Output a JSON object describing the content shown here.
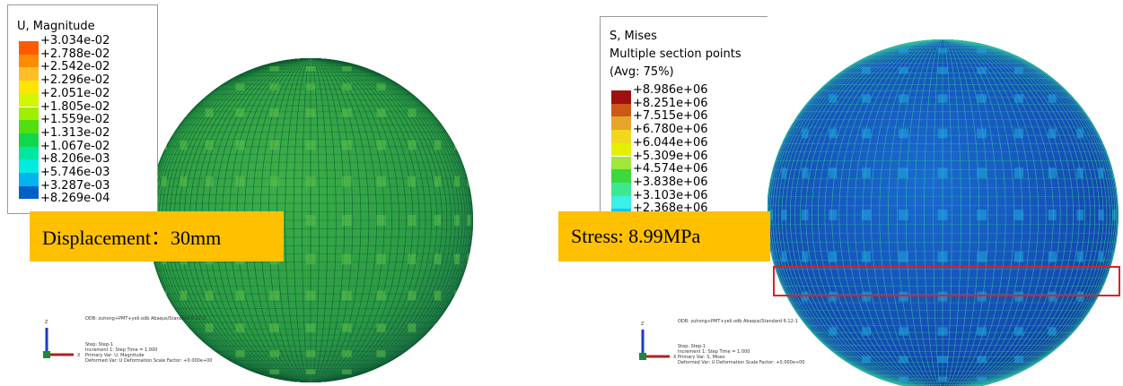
{
  "left": {
    "legend_title": "U, Magnitude",
    "legend": [
      {
        "label": "+3.034e-02",
        "color": "#ff5a00"
      },
      {
        "label": "+2.788e-02",
        "color": "#ff8c00"
      },
      {
        "label": "+2.542e-02",
        "color": "#ffbe28"
      },
      {
        "label": "+2.296e-02",
        "color": "#ffe400"
      },
      {
        "label": "+2.051e-02",
        "color": "#d2f500"
      },
      {
        "label": "+1.805e-02",
        "color": "#a0ee00"
      },
      {
        "label": "+1.559e-02",
        "color": "#50e010"
      },
      {
        "label": "+1.313e-02",
        "color": "#10d84a"
      },
      {
        "label": "+1.067e-02",
        "color": "#00e8a0"
      },
      {
        "label": "+8.206e-03",
        "color": "#00ece0"
      },
      {
        "label": "+5.746e-03",
        "color": "#00b4f0"
      },
      {
        "label": "+3.287e-03",
        "color": "#0060c8"
      },
      {
        "label": "+8.269e-04",
        "color": null
      }
    ],
    "callout": "Displacement：30mm",
    "odb": "ODB: zuhong+PMT+yeli.odb    Abaqus/Standard 6.12-1",
    "step": [
      "Step: Step-1",
      "Increment    1: Step Time =    1.000",
      "Primary Var: U, Magnitude",
      "Deformed Var: U   Deformation Scale Factor: +0.000e+00"
    ],
    "axes": [
      "Z",
      "X"
    ]
  },
  "right": {
    "legend_title": [
      "S, Mises",
      "Multiple section points",
      "(Avg: 75%)"
    ],
    "legend": [
      {
        "label": "+8.986e+06",
        "color": "#a01010"
      },
      {
        "label": "+8.251e+06",
        "color": "#cc5818"
      },
      {
        "label": "+7.515e+06",
        "color": "#e8a428"
      },
      {
        "label": "+6.780e+06",
        "color": "#f2d81c"
      },
      {
        "label": "+6.044e+06",
        "color": "#e4f000"
      },
      {
        "label": "+5.309e+06",
        "color": "#a0e63c"
      },
      {
        "label": "+4.574e+06",
        "color": "#3cd83c"
      },
      {
        "label": "+3.838e+06",
        "color": "#3ce892"
      },
      {
        "label": "+3.103e+06",
        "color": "#3cf0e8"
      },
      {
        "label": "+2.368e+06",
        "color": "#1cc0f0"
      }
    ],
    "callout": "Stress: 8.99MPa",
    "odb": "ODB: zuhong+PMT+yeli.odb    Abaqus/Standard 6.12-1",
    "step": [
      "Step: Step-1",
      "Increment    1: Step Time =    1.000",
      "Primary Var: S, Mises",
      "Deformed Var: U   Deformation Scale Factor: +0.000e+00"
    ],
    "axes": [
      "Z",
      "X"
    ]
  }
}
